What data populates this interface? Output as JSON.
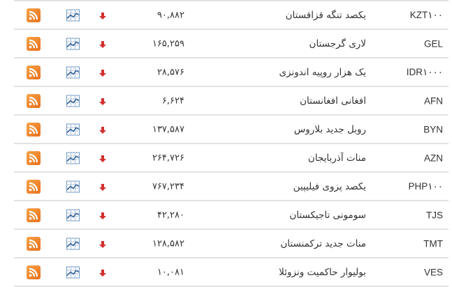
{
  "colors": {
    "down_arrow": "#d32f2f",
    "rss": "#ee7f22",
    "chart_icon": "#4a7fb5",
    "divider": "#e2e2e2"
  },
  "rows": [
    {
      "code": "KZT۱۰۰",
      "name": "یکصد تنگه قزاقستان",
      "value": "۹۰,۸۸۲",
      "trend": "down"
    },
    {
      "code": "GEL",
      "name": "لاری گرجستان",
      "value": "۱۶۵,۲۵۹",
      "trend": "down"
    },
    {
      "code": "IDR۱۰۰۰",
      "name": "یک هزار روپیه اندونزی",
      "value": "۲۸,۵۷۶",
      "trend": "down"
    },
    {
      "code": "AFN",
      "name": "افغانی افغانستان",
      "value": "۶,۶۲۴",
      "trend": "down"
    },
    {
      "code": "BYN",
      "name": "روبل جدید بلاروس",
      "value": "۱۳۷,۵۸۷",
      "trend": "down"
    },
    {
      "code": "AZN",
      "name": "منات آذربایجان",
      "value": "۲۶۴,۷۲۶",
      "trend": "down"
    },
    {
      "code": "PHP۱۰۰",
      "name": "یکصد پزوی فیلیپین",
      "value": "۷۶۷,۲۳۴",
      "trend": "down"
    },
    {
      "code": "TJS",
      "name": "سومونی تاجیکستان",
      "value": "۴۲,۲۸۰",
      "trend": "down"
    },
    {
      "code": "TMT",
      "name": "منات جدید ترکمنستان",
      "value": "۱۲۸,۵۸۲",
      "trend": "down"
    },
    {
      "code": "VES",
      "name": "بولیوار حاکمیت ونزوئلا",
      "value": "۱۰,۰۸۱",
      "trend": "down"
    }
  ]
}
